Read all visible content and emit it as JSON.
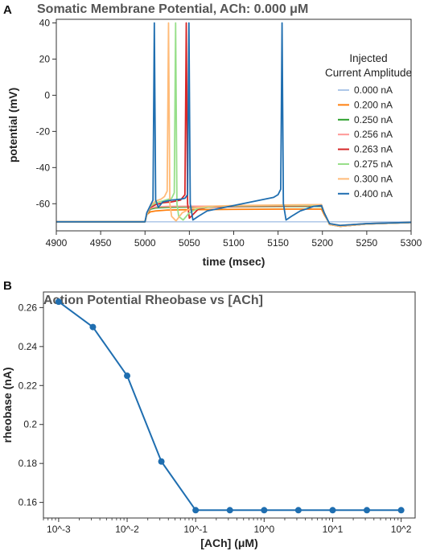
{
  "panel_labels": [
    "A",
    "B"
  ],
  "chart_data": [
    {
      "type": "line",
      "title": "Somatic Membrane Potential, ACh: 0.000 μM",
      "xlabel": "time (msec)",
      "ylabel": "potential (mV)",
      "xlim": [
        4900,
        5300
      ],
      "ylim": [
        -75,
        42
      ],
      "xticks": [
        4900,
        4950,
        5000,
        5050,
        5100,
        5150,
        5200,
        5250,
        5300
      ],
      "yticks": [
        -60,
        -40,
        -20,
        0,
        20,
        40
      ],
      "grid": false,
      "legend": {
        "title_line1": "Injected",
        "title_line2": "Current Amplitude",
        "position": "right"
      },
      "series": [
        {
          "name": "0.000 nA",
          "color": "#aec7e8",
          "x": [
            4900,
            5000,
            5300
          ],
          "y": [
            -70,
            -70,
            -70
          ]
        },
        {
          "name": "0.200 nA",
          "color": "#ff7f0e",
          "x": [
            4900,
            5000,
            5002,
            5006,
            5012,
            5025,
            5050,
            5100,
            5150,
            5199,
            5202,
            5208,
            5220,
            5250,
            5300
          ],
          "y": [
            -70,
            -70,
            -66,
            -64.5,
            -64,
            -63.5,
            -63.3,
            -63.1,
            -63,
            -63,
            -66,
            -71,
            -72,
            -71,
            -70.3
          ]
        },
        {
          "name": "0.250 nA",
          "color": "#2ca02c",
          "x": [
            4900,
            5000,
            5002,
            5006,
            5012,
            5025,
            5050,
            5100,
            5150,
            5199,
            5202,
            5208,
            5220,
            5250,
            5300
          ],
          "y": [
            -70,
            -70,
            -66,
            -63,
            -62.3,
            -62,
            -61.8,
            -61.6,
            -61.5,
            -61.5,
            -65,
            -71.5,
            -72.5,
            -71.2,
            -70.4
          ]
        },
        {
          "name": "0.256 nA",
          "color": "#ff9896",
          "x": [
            4900,
            5000,
            5002,
            5006,
            5012,
            5025,
            5050,
            5100,
            5150,
            5199,
            5202,
            5208,
            5220,
            5250,
            5300
          ],
          "y": [
            -70,
            -70,
            -66,
            -62.5,
            -61.8,
            -61.5,
            -61.4,
            -61.3,
            -61.2,
            -61.2,
            -65,
            -71.5,
            -72.5,
            -71.2,
            -70.4
          ]
        },
        {
          "name": "0.263 nA",
          "color": "#d62728",
          "x": [
            4900,
            5000,
            5002,
            5006,
            5012,
            5020,
            5030,
            5040,
            5045,
            5046.5,
            5048,
            5050,
            5054,
            5060,
            5070,
            5100,
            5150,
            5199,
            5202,
            5208,
            5220,
            5250,
            5300
          ],
          "y": [
            -70,
            -70,
            -66,
            -62,
            -60.5,
            -59.5,
            -59,
            -58,
            -55,
            40,
            -60,
            -68,
            -66,
            -63,
            -62,
            -61.5,
            -61.3,
            -61.2,
            -65,
            -71.5,
            -72.5,
            -71.2,
            -70.4
          ]
        },
        {
          "name": "0.275 nA",
          "color": "#98df8a",
          "x": [
            4900,
            5000,
            5002,
            5006,
            5012,
            5020,
            5030,
            5033,
            5034.5,
            5036,
            5038,
            5043,
            5050,
            5060,
            5080,
            5100,
            5150,
            5199,
            5202,
            5208,
            5220,
            5250,
            5300
          ],
          "y": [
            -70,
            -70,
            -66,
            -61.5,
            -59.5,
            -58.5,
            -57,
            -54,
            40,
            -60,
            -67,
            -69,
            -65,
            -62.5,
            -61.5,
            -61.2,
            -61,
            -61,
            -65,
            -71.5,
            -72.5,
            -71.2,
            -70.4
          ]
        },
        {
          "name": "0.300 nA",
          "color": "#ffbb78",
          "x": [
            4900,
            5000,
            5002,
            5006,
            5012,
            5018,
            5022,
            5025,
            5026.5,
            5028,
            5030,
            5035,
            5042,
            5052,
            5070,
            5100,
            5150,
            5199,
            5202,
            5208,
            5220,
            5250,
            5300
          ],
          "y": [
            -70,
            -70,
            -66,
            -61,
            -58.5,
            -57.5,
            -56,
            -53,
            40,
            -60,
            -67,
            -69.5,
            -65,
            -62.5,
            -61.5,
            -61,
            -60.7,
            -60.5,
            -65,
            -71.5,
            -72.5,
            -71.2,
            -70.4
          ]
        },
        {
          "name": "0.400 nA",
          "color": "#1f6eb0",
          "x": [
            4900,
            5000,
            5002,
            5006,
            5009,
            5010.5,
            5012,
            5015,
            5020,
            5030,
            5040,
            5045,
            5048,
            5049.5,
            5051,
            5054,
            5060,
            5070,
            5090,
            5110,
            5130,
            5145,
            5150,
            5153,
            5154.5,
            5156,
            5159,
            5165,
            5175,
            5190,
            5199,
            5202,
            5208,
            5220,
            5250,
            5300
          ],
          "y": [
            -70,
            -70,
            -65,
            -61,
            -58,
            40,
            -58,
            -62,
            -59,
            -58,
            -57.5,
            -57,
            -55,
            40,
            -60,
            -69,
            -67,
            -64,
            -62,
            -60,
            -58,
            -56.5,
            -55,
            -52,
            40,
            -60,
            -69,
            -67,
            -64,
            -61.5,
            -61,
            -65,
            -71,
            -72,
            -71,
            -70.3
          ]
        }
      ]
    },
    {
      "type": "line",
      "title": "Action Potential Rheobase vs [ACh]",
      "xlabel": "[ACh] (μM)",
      "ylabel": "rheobase (nA)",
      "xscale": "log",
      "xlim": [
        0.0006,
        160
      ],
      "ylim": [
        0.152,
        0.268
      ],
      "xticks": [
        0.001,
        0.01,
        0.1,
        1,
        10,
        100
      ],
      "xtick_labels": [
        "10^-3",
        "10^-2",
        "10^-1",
        "10^0",
        "10^1",
        "10^2"
      ],
      "yticks": [
        0.16,
        0.18,
        0.2,
        0.22,
        0.24,
        0.26
      ],
      "ytick_labels": [
        "0.16",
        "0.18",
        "0.2",
        "0.22",
        "0.24",
        "0.26"
      ],
      "grid": false,
      "series": [
        {
          "color": "#1f6eb0",
          "x": [
            0.001,
            0.00316,
            0.01,
            0.0316,
            0.1,
            0.316,
            1,
            3.16,
            10,
            31.6,
            100
          ],
          "y": [
            0.263,
            0.25,
            0.225,
            0.181,
            0.156,
            0.156,
            0.156,
            0.156,
            0.156,
            0.156,
            0.156
          ]
        }
      ]
    }
  ]
}
